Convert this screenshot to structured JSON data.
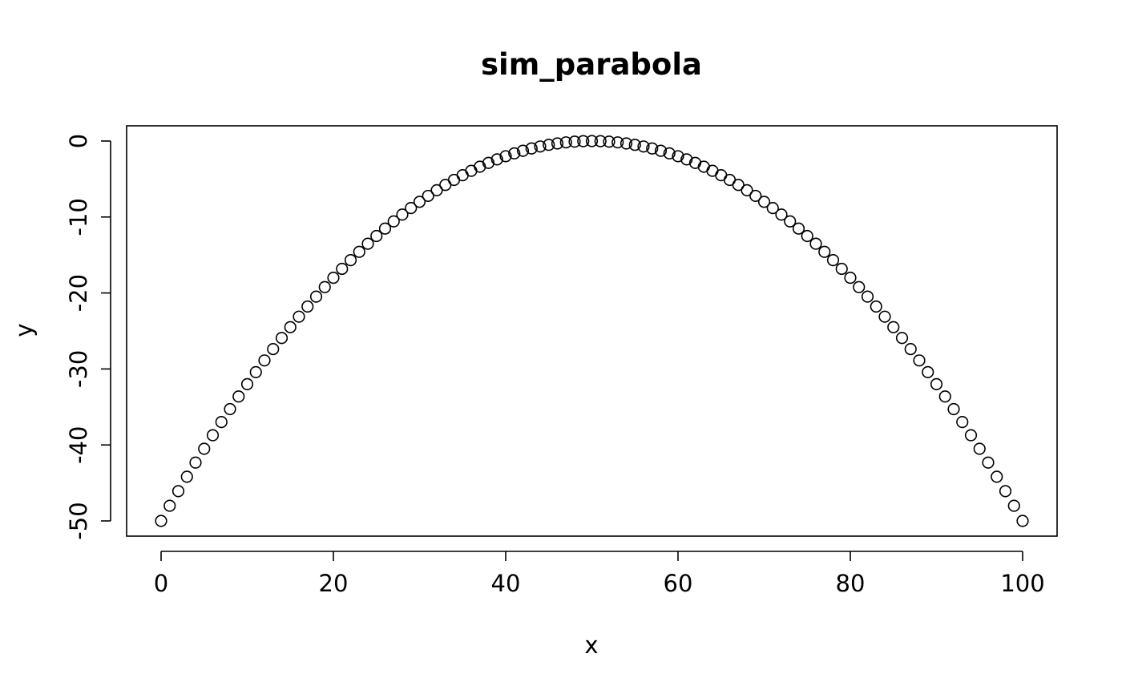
{
  "chart_data": {
    "type": "scatter",
    "title": "sim_parabola",
    "xlabel": "x",
    "ylabel": "y",
    "xlim": [
      -4,
      104
    ],
    "ylim": [
      -52,
      2
    ],
    "x_ticks": [
      0,
      20,
      40,
      60,
      80,
      100
    ],
    "x_tick_labels": [
      "0",
      "20",
      "40",
      "60",
      "80",
      "100"
    ],
    "y_ticks": [
      0,
      -10,
      -20,
      -30,
      -40,
      -50
    ],
    "y_tick_labels": [
      "0",
      "-10",
      "-20",
      "-30",
      "-40",
      "-50"
    ],
    "grid": false,
    "marker": "open-circle",
    "colors": {
      "marker": "#000000",
      "axes": "#000000",
      "background": "#ffffff"
    },
    "points": [
      [
        0,
        -50
      ],
      [
        1,
        -48
      ],
      [
        2,
        -46.08
      ],
      [
        3,
        -44.18
      ],
      [
        4,
        -42.32
      ],
      [
        5,
        -40.5
      ],
      [
        6,
        -38.72
      ],
      [
        7,
        -36.98
      ],
      [
        8,
        -35.28
      ],
      [
        9,
        -33.62
      ],
      [
        10,
        -32
      ],
      [
        11,
        -30.42
      ],
      [
        12,
        -28.88
      ],
      [
        13,
        -27.38
      ],
      [
        14,
        -25.92
      ],
      [
        15,
        -24.5
      ],
      [
        16,
        -23.12
      ],
      [
        17,
        -21.78
      ],
      [
        18,
        -20.48
      ],
      [
        19,
        -19.22
      ],
      [
        20,
        -18
      ],
      [
        21,
        -16.82
      ],
      [
        22,
        -15.68
      ],
      [
        23,
        -14.58
      ],
      [
        24,
        -13.52
      ],
      [
        25,
        -12.5
      ],
      [
        26,
        -11.52
      ],
      [
        27,
        -10.58
      ],
      [
        28,
        -9.68
      ],
      [
        29,
        -8.82
      ],
      [
        30,
        -8
      ],
      [
        31,
        -7.22
      ],
      [
        32,
        -6.48
      ],
      [
        33,
        -5.78
      ],
      [
        34,
        -5.12
      ],
      [
        35,
        -4.5
      ],
      [
        36,
        -3.92
      ],
      [
        37,
        -3.38
      ],
      [
        38,
        -2.88
      ],
      [
        39,
        -2.42
      ],
      [
        40,
        -2
      ],
      [
        41,
        -1.62
      ],
      [
        42,
        -1.28
      ],
      [
        43,
        -0.98
      ],
      [
        44,
        -0.72
      ],
      [
        45,
        -0.5
      ],
      [
        46,
        -0.32
      ],
      [
        47,
        -0.18
      ],
      [
        48,
        -0.08
      ],
      [
        49,
        -0.02
      ],
      [
        50,
        0
      ],
      [
        51,
        -0.02
      ],
      [
        52,
        -0.08
      ],
      [
        53,
        -0.18
      ],
      [
        54,
        -0.32
      ],
      [
        55,
        -0.5
      ],
      [
        56,
        -0.72
      ],
      [
        57,
        -0.98
      ],
      [
        58,
        -1.28
      ],
      [
        59,
        -1.62
      ],
      [
        60,
        -2
      ],
      [
        61,
        -2.42
      ],
      [
        62,
        -2.88
      ],
      [
        63,
        -3.38
      ],
      [
        64,
        -3.92
      ],
      [
        65,
        -4.5
      ],
      [
        66,
        -5.12
      ],
      [
        67,
        -5.78
      ],
      [
        68,
        -6.48
      ],
      [
        69,
        -7.22
      ],
      [
        70,
        -8
      ],
      [
        71,
        -8.82
      ],
      [
        72,
        -9.68
      ],
      [
        73,
        -10.58
      ],
      [
        74,
        -11.52
      ],
      [
        75,
        -12.5
      ],
      [
        76,
        -13.52
      ],
      [
        77,
        -14.58
      ],
      [
        78,
        -15.68
      ],
      [
        79,
        -16.82
      ],
      [
        80,
        -18
      ],
      [
        81,
        -19.22
      ],
      [
        82,
        -20.48
      ],
      [
        83,
        -21.78
      ],
      [
        84,
        -23.12
      ],
      [
        85,
        -24.5
      ],
      [
        86,
        -25.92
      ],
      [
        87,
        -27.38
      ],
      [
        88,
        -28.88
      ],
      [
        89,
        -30.42
      ],
      [
        90,
        -32
      ],
      [
        91,
        -33.62
      ],
      [
        92,
        -35.28
      ],
      [
        93,
        -36.98
      ],
      [
        94,
        -38.72
      ],
      [
        95,
        -40.5
      ],
      [
        96,
        -42.32
      ],
      [
        97,
        -44.18
      ],
      [
        98,
        -46.08
      ],
      [
        99,
        -48
      ],
      [
        100,
        -50
      ]
    ]
  }
}
